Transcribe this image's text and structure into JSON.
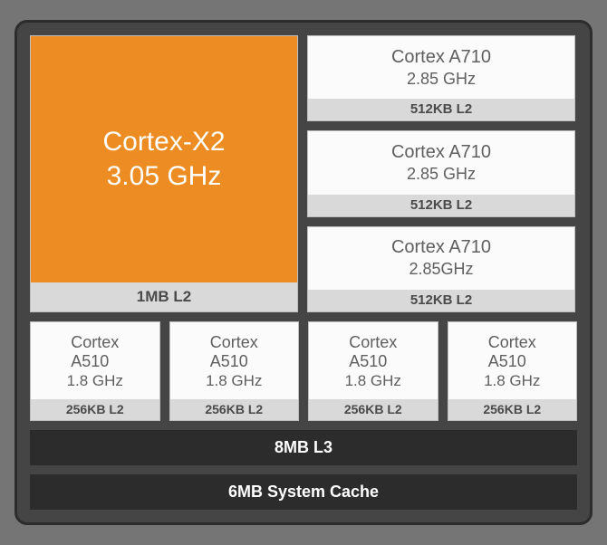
{
  "type": "block-diagram",
  "background_outer": "#757575",
  "chip_bg": "#454545",
  "chip_border": "#2c2c2c",
  "core_bg": "#fbfbfb",
  "core_text": "#5f5f5f",
  "cache_bg": "#d9d9d9",
  "cache_text": "#4a4a4a",
  "prime_bg": "#ec8c22",
  "prime_text": "#ffffff",
  "bar_bg": "#2c2c2c",
  "bar_text": "#ffffff",
  "prime": {
    "name": "Cortex-X2",
    "freq": "3.05 GHz",
    "l2": "1MB L2"
  },
  "mid": [
    {
      "name": "Cortex A710",
      "freq": "2.85 GHz",
      "l2": "512KB L2"
    },
    {
      "name": "Cortex A710",
      "freq": "2.85 GHz",
      "l2": "512KB L2"
    },
    {
      "name": "Cortex A710",
      "freq": "2.85GHz",
      "l2": "512KB L2"
    }
  ],
  "little": [
    {
      "name1": "Cortex",
      "name2": "A510",
      "freq": "1.8 GHz",
      "l2": "256KB L2"
    },
    {
      "name1": "Cortex",
      "name2": "A510",
      "freq": "1.8 GHz",
      "l2": "256KB L2"
    },
    {
      "name1": "Cortex",
      "name2": "A510",
      "freq": "1.8 GHz",
      "l2": "256KB L2"
    },
    {
      "name1": "Cortex",
      "name2": "A510",
      "freq": "1.8 GHz",
      "l2": "256KB L2"
    }
  ],
  "l3": "8MB L3",
  "syscache": "6MB System Cache"
}
